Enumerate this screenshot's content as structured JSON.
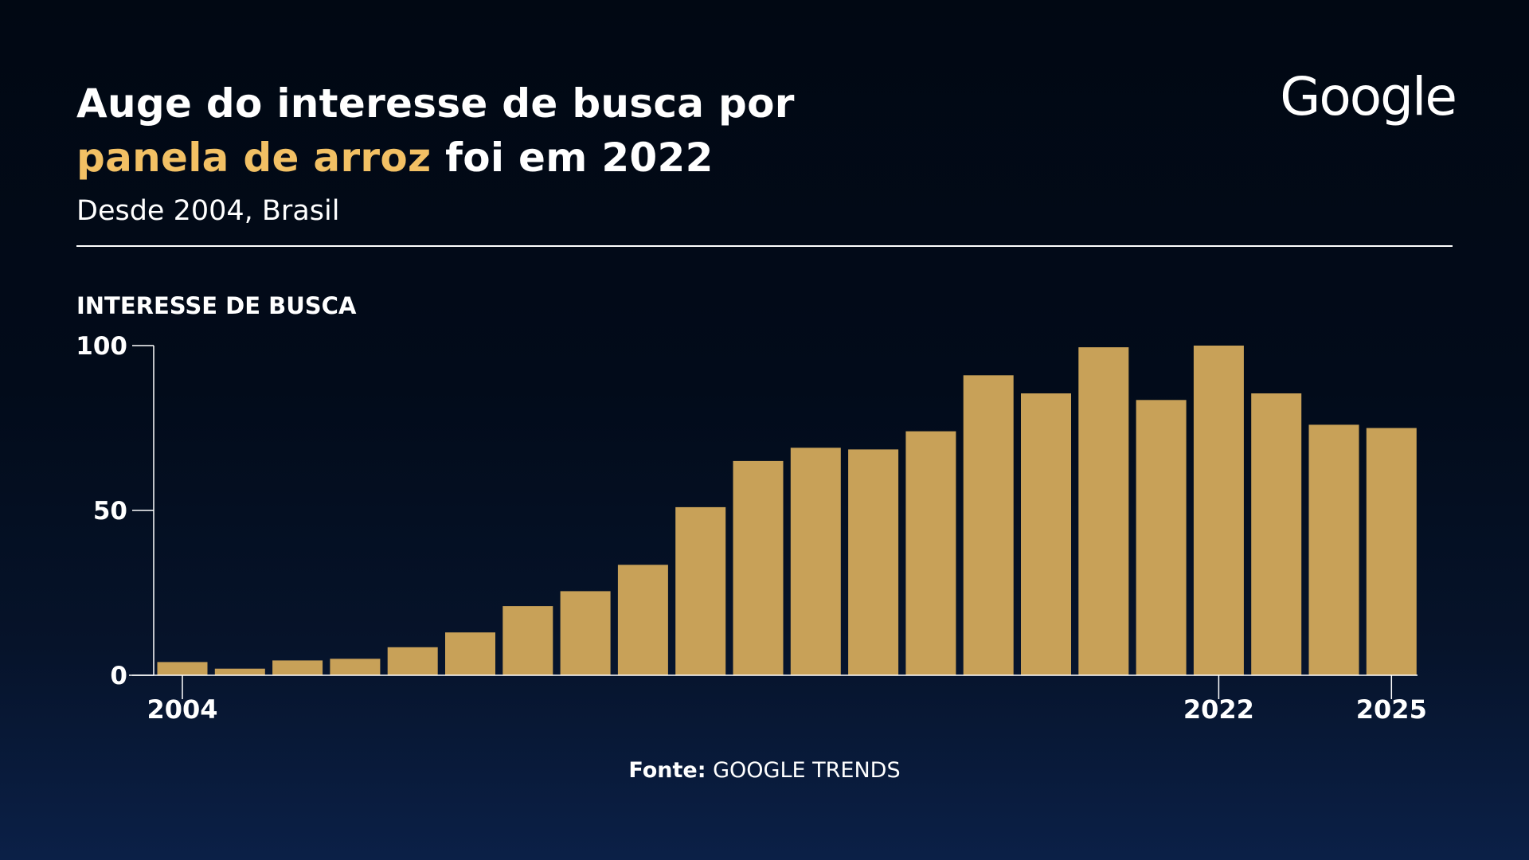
{
  "header": {
    "title_line1": "Auge do interesse de busca por",
    "title_highlight": "panela de arroz",
    "title_rest": " foi em 2022",
    "subtitle": "Desde 2004, Brasil",
    "logo_text": "Google"
  },
  "footer": {
    "source_label": "Fonte:",
    "source_value": "GOOGLE TRENDS"
  },
  "colors": {
    "highlight": "#f2c064",
    "bar": "#c8a158",
    "background_top": "#010813",
    "background_bottom": "#0b2047"
  },
  "chart_data": {
    "type": "bar",
    "title": "",
    "ylabel": "INTERESSE DE BUSCA",
    "xlabel": "",
    "ylim": [
      0,
      100
    ],
    "yticks": [
      0,
      50,
      100
    ],
    "xticks_labeled": [
      "2004",
      "2022",
      "2025"
    ],
    "categories": [
      "2004",
      "2005",
      "2006",
      "2007",
      "2008",
      "2009",
      "2010",
      "2011",
      "2012",
      "2013",
      "2014",
      "2015",
      "2016",
      "2017",
      "2018",
      "2019",
      "2020",
      "2021",
      "2022",
      "2023",
      "2024",
      "2025"
    ],
    "values": [
      4,
      2,
      4.5,
      5,
      8.5,
      13,
      21,
      25.5,
      33.5,
      51,
      65,
      69,
      68.5,
      74,
      91,
      85.5,
      99.5,
      83.5,
      100,
      85.5,
      76,
      75
    ],
    "grid": false,
    "legend": "none"
  }
}
